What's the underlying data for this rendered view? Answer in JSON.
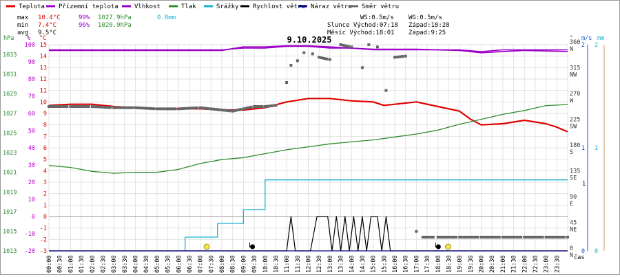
{
  "colors": {
    "temperature": "#e00000",
    "feels_like": "#a000c8",
    "humidity": "#9b00c8",
    "pressure": "#2e8b2e",
    "precipitation": "#1ab0d0",
    "wind_speed": "#000000",
    "gust": "#00008b",
    "direction": "#666666",
    "axis_pressure": "#2e8b2e",
    "axis_humidity": "#b000c8",
    "axis_temp": "#e00000",
    "axis_wind": "#1a4fd0",
    "axis_rain": "#1ab0d0",
    "sun": "#f3e64a",
    "grid": "#e2e2e2"
  },
  "legend": [
    {
      "key": "temperature",
      "label": "Teplota"
    },
    {
      "key": "feels_like",
      "label": "Přízemní teplota"
    },
    {
      "key": "humidity",
      "label": "Vlhkost"
    },
    {
      "key": "pressure",
      "label": "Tlak"
    },
    {
      "key": "precipitation",
      "label": "Srážky"
    },
    {
      "key": "wind_speed",
      "label": "Rychlost větru"
    },
    {
      "key": "gust",
      "label": "Náraz větru"
    },
    {
      "key": "direction",
      "label": "Směr větru"
    }
  ],
  "stats": {
    "max_label": "max",
    "max_temp": "10.4°C",
    "max_hum": "99%",
    "max_press": "1027.9hPa",
    "rain_total": "0.8mm",
    "min_label": "min",
    "min_temp": "7.4°C",
    "min_hum": "96%",
    "min_press": "1020.9hPa",
    "avg_label": "avg",
    "avg_temp": "9.5°C"
  },
  "info": {
    "ws": "WS:0.5m/s",
    "wg": "WG:0.5m/s",
    "sun_rise": "Slunce Východ:07:18",
    "sun_set": "Západ:18:28",
    "moon_rise": "Měsíc  Východ:18:01",
    "moon_set": "Západ:9:25"
  },
  "chart_data": {
    "type": "line",
    "title": "9.10.2025",
    "xlabel": "čas",
    "x_ticks": [
      "00:00",
      "00:30",
      "01:00",
      "01:30",
      "02:00",
      "02:30",
      "03:00",
      "03:30",
      "04:00",
      "04:30",
      "05:00",
      "05:30",
      "06:00",
      "06:30",
      "07:00",
      "07:30",
      "08:00",
      "08:30",
      "09:00",
      "09:30",
      "10:00",
      "10:30",
      "11:00",
      "11:30",
      "12:00",
      "12:30",
      "13:00",
      "13:30",
      "14:00",
      "14:30",
      "15:00",
      "15:30",
      "16:00",
      "16:30",
      "17:00",
      "17:30",
      "18:00",
      "18:30",
      "19:00",
      "19:30",
      "20:00",
      "20:30",
      "21:00",
      "21:30",
      "22:00",
      "22:30",
      "23:00",
      "23:30"
    ],
    "x_range": [
      0,
      24
    ],
    "axes": {
      "pressure": {
        "label": "hPa",
        "range": [
          1013,
          1034
        ],
        "ticks": [
          1013,
          1015,
          1017,
          1019,
          1021,
          1023,
          1025,
          1027,
          1029,
          1031,
          1033
        ]
      },
      "humidity": {
        "label": "%",
        "range": [
          -20,
          100
        ],
        "ticks": [
          -20,
          -10,
          0,
          10,
          20,
          30,
          40,
          50,
          60,
          70,
          80,
          90,
          100
        ]
      },
      "temperature": {
        "label": "°C",
        "range": [
          -3,
          16
        ],
        "ticks": [
          -3,
          -2,
          -1,
          0,
          1,
          2,
          3,
          4,
          5,
          6,
          7,
          8,
          9,
          10,
          11,
          12,
          13,
          14,
          15
        ]
      },
      "direction": {
        "label": "°",
        "ticks": [
          {
            "deg": "0",
            "dir": "N"
          },
          {
            "deg": "45",
            "dir": "NE"
          },
          {
            "deg": "90",
            "dir": "E"
          },
          {
            "deg": "135",
            "dir": "SE"
          },
          {
            "deg": "180",
            "dir": "S"
          },
          {
            "deg": "225",
            "dir": "SW"
          },
          {
            "deg": "270",
            "dir": "W"
          },
          {
            "deg": "315",
            "dir": "NW"
          },
          {
            "deg": "360",
            "dir": "N"
          }
        ]
      },
      "wind": {
        "label": "m/s",
        "ticks": [
          "0",
          "1",
          "2"
        ]
      },
      "rain": {
        "label": "mm",
        "ticks": [
          "0",
          "1",
          "2"
        ]
      }
    },
    "series": [
      {
        "key": "temperature",
        "axis": "temperature",
        "points": [
          [
            0,
            9.7
          ],
          [
            1,
            9.8
          ],
          [
            2,
            9.8
          ],
          [
            3,
            9.6
          ],
          [
            4,
            9.5
          ],
          [
            5,
            9.4
          ],
          [
            6,
            9.4
          ],
          [
            7,
            9.4
          ],
          [
            8,
            9.3
          ],
          [
            9,
            9.3
          ],
          [
            10,
            9.5
          ],
          [
            11,
            10.0
          ],
          [
            12,
            10.3
          ],
          [
            13,
            10.3
          ],
          [
            14,
            10.1
          ],
          [
            15,
            10.0
          ],
          [
            15.5,
            9.7
          ],
          [
            16,
            9.8
          ],
          [
            17,
            10.0
          ],
          [
            18,
            9.6
          ],
          [
            19,
            9.2
          ],
          [
            19.5,
            8.5
          ],
          [
            20,
            8.0
          ],
          [
            21,
            8.1
          ],
          [
            22,
            8.4
          ],
          [
            23,
            8.1
          ],
          [
            23.5,
            7.8
          ],
          [
            24,
            7.4
          ]
        ]
      },
      {
        "key": "feels_like",
        "axis": "temperature",
        "points": [
          [
            0,
            14.5
          ],
          [
            2,
            14.5
          ],
          [
            4,
            14.5
          ],
          [
            6,
            14.5
          ],
          [
            8,
            14.5
          ],
          [
            9,
            14.8
          ],
          [
            10,
            14.8
          ],
          [
            11,
            14.9
          ],
          [
            12,
            14.9
          ],
          [
            13,
            14.8
          ],
          [
            14,
            14.7
          ],
          [
            15,
            14.6
          ],
          [
            17,
            14.6
          ],
          [
            19,
            14.5
          ],
          [
            20,
            14.3
          ],
          [
            21,
            14.4
          ],
          [
            22,
            14.5
          ],
          [
            24,
            14.4
          ]
        ]
      },
      {
        "key": "humidity",
        "axis": "humidity",
        "points": [
          [
            0,
            97
          ],
          [
            2,
            97
          ],
          [
            4,
            97
          ],
          [
            6,
            97
          ],
          [
            8,
            97
          ],
          [
            9,
            98
          ],
          [
            10,
            98
          ],
          [
            11,
            99
          ],
          [
            12,
            99
          ],
          [
            13,
            98
          ],
          [
            14,
            98
          ],
          [
            15,
            97
          ],
          [
            17,
            97
          ],
          [
            19,
            97
          ],
          [
            20,
            96
          ],
          [
            21,
            97
          ],
          [
            22,
            97
          ],
          [
            24,
            97
          ]
        ]
      },
      {
        "key": "pressure",
        "axis": "pressure",
        "points": [
          [
            0,
            1021.7
          ],
          [
            1,
            1021.5
          ],
          [
            2,
            1021.1
          ],
          [
            3,
            1020.9
          ],
          [
            4,
            1021.0
          ],
          [
            5,
            1021.0
          ],
          [
            6,
            1021.3
          ],
          [
            7,
            1021.9
          ],
          [
            8,
            1022.3
          ],
          [
            9,
            1022.5
          ],
          [
            10,
            1022.9
          ],
          [
            11,
            1023.3
          ],
          [
            12,
            1023.6
          ],
          [
            13,
            1023.9
          ],
          [
            14,
            1024.1
          ],
          [
            15,
            1024.3
          ],
          [
            16,
            1024.6
          ],
          [
            17,
            1024.9
          ],
          [
            18,
            1025.3
          ],
          [
            19,
            1025.9
          ],
          [
            20,
            1026.4
          ],
          [
            21,
            1026.9
          ],
          [
            22,
            1027.3
          ],
          [
            23,
            1027.8
          ],
          [
            24,
            1027.9
          ]
        ]
      },
      {
        "key": "precipitation",
        "axis": "temperature",
        "step": true,
        "points": [
          [
            6.3,
            -3
          ],
          [
            6.3,
            -1.8
          ],
          [
            7.8,
            -1.8
          ],
          [
            7.8,
            -0.6
          ],
          [
            9.0,
            -0.6
          ],
          [
            9.0,
            0.6
          ],
          [
            10.0,
            0.6
          ],
          [
            10.0,
            1.6
          ],
          [
            10.0,
            3.2
          ],
          [
            24,
            3.2
          ]
        ]
      },
      {
        "key": "wind_speed",
        "axis": "temperature",
        "points": [
          [
            0,
            -3
          ],
          [
            11.0,
            -3
          ],
          [
            11.2,
            0
          ],
          [
            11.4,
            -3
          ],
          [
            12.1,
            -3
          ],
          [
            12.4,
            0
          ],
          [
            12.9,
            0
          ],
          [
            13.1,
            -3
          ],
          [
            13.3,
            0
          ],
          [
            13.5,
            -3
          ],
          [
            13.7,
            0
          ],
          [
            13.9,
            -3
          ],
          [
            14.1,
            0
          ],
          [
            14.3,
            -3
          ],
          [
            14.5,
            0
          ],
          [
            14.7,
            -3
          ],
          [
            14.9,
            0
          ],
          [
            15.2,
            0
          ],
          [
            15.4,
            -3
          ],
          [
            15.6,
            0
          ],
          [
            15.8,
            -3
          ],
          [
            24,
            -3
          ]
        ]
      },
      {
        "key": "gust",
        "axis": "temperature",
        "points": [
          [
            0,
            -3
          ],
          [
            24,
            -3
          ]
        ]
      }
    ],
    "direction_points": [
      {
        "axis": "temperature",
        "points": [
          [
            0,
            9.6
          ],
          [
            1,
            9.6
          ],
          [
            2,
            9.6
          ],
          [
            3,
            9.5
          ],
          [
            4,
            9.5
          ],
          [
            5,
            9.4
          ],
          [
            6,
            9.4
          ],
          [
            7,
            9.5
          ],
          [
            7.5,
            9.4
          ],
          [
            8,
            9.3
          ],
          [
            8.5,
            9.2
          ],
          [
            9,
            9.4
          ],
          [
            9.5,
            9.6
          ],
          [
            10,
            9.6
          ],
          [
            10.5,
            9.7
          ],
          [
            11,
            11.7
          ],
          [
            11.2,
            13.2
          ],
          [
            11.5,
            13.6
          ],
          [
            11.8,
            14.3
          ],
          [
            12.2,
            14.2
          ],
          [
            12.5,
            13.9
          ],
          [
            13,
            13.7
          ],
          [
            13.5,
            15.0
          ],
          [
            14,
            14.8
          ],
          [
            14.5,
            13.0
          ],
          [
            14.8,
            15.0
          ],
          [
            15.2,
            14.8
          ],
          [
            15.6,
            11.0
          ],
          [
            16,
            13.9
          ],
          [
            16.5,
            14.0
          ],
          [
            17,
            -1.3
          ],
          [
            17.3,
            -1.8
          ],
          [
            18,
            -1.8
          ],
          [
            19,
            -1.8
          ],
          [
            20,
            -1.8
          ],
          [
            21,
            -1.8
          ],
          [
            22,
            -1.8
          ],
          [
            23,
            -1.8
          ],
          [
            24,
            -1.8
          ]
        ]
      }
    ],
    "markers": [
      {
        "name": "sunrise",
        "x": 7.3
      },
      {
        "name": "sunset",
        "x": 18.47
      },
      {
        "name": "moonrise",
        "x": 18.02
      },
      {
        "name": "moonset",
        "x": 9.42
      }
    ]
  }
}
